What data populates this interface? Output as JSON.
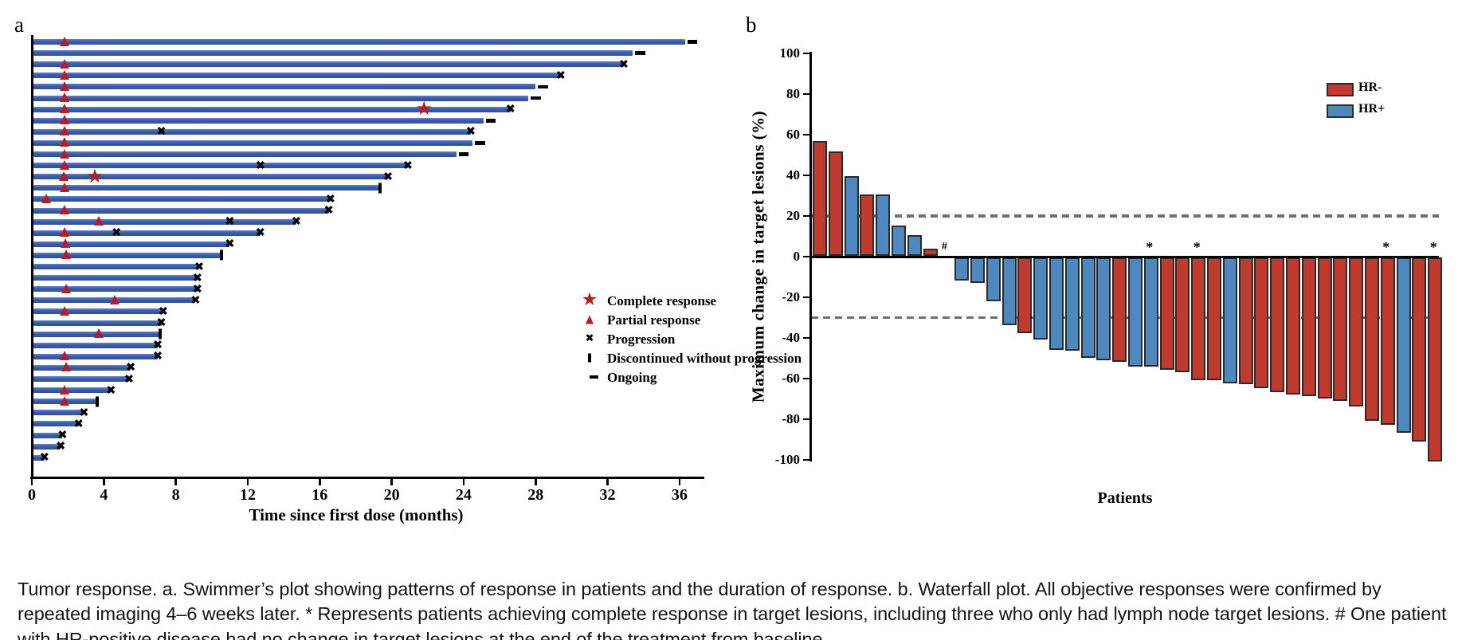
{
  "figure": {
    "panel_a_label": "a",
    "panel_b_label": "b"
  },
  "caption": "Tumor response. a. Swimmer’s plot showing patterns of response in patients and the duration of response. b. Waterfall plot. All objective responses were confirmed by repeated imaging 4–6 weeks later. * Represents patients achieving complete response in target lesions, including three who only had lymph node target lesions. # One patient with HR-positive disease had no change in target lesions at the end of the treatment from baseline.",
  "colors": {
    "swimmer_bar_blue": "#3a5ca8",
    "response_marker_red": "#b81d22",
    "hr_negative_red": "#c03a2e",
    "hr_positive_blue": "#4d89c0",
    "reference_dash_gray": "#6f6f6f",
    "axis_black": "#000000"
  },
  "chart_data": [
    {
      "type": "swimmer",
      "xlabel": "Time since first dose (months)",
      "x_ticks": [
        0,
        4,
        8,
        12,
        16,
        20,
        24,
        28,
        32,
        36
      ],
      "xlim": [
        0,
        37.3
      ],
      "legend": [
        {
          "marker": "star",
          "label": "Complete response"
        },
        {
          "marker": "triangle",
          "label": "Partial response"
        },
        {
          "marker": "x",
          "label": "Progression"
        },
        {
          "marker": "bar",
          "label": "Discontinued without progression"
        },
        {
          "marker": "dash",
          "label": "Ongoing"
        }
      ],
      "patients": [
        {
          "duration": 36.3,
          "end": "ongoing",
          "partial_response_at": 1.8
        },
        {
          "duration": 33.4,
          "end": "ongoing"
        },
        {
          "duration": 32.9,
          "end": "progression",
          "partial_response_at": 1.8
        },
        {
          "duration": 29.4,
          "end": "progression",
          "partial_response_at": 1.8
        },
        {
          "duration": 28.0,
          "end": "ongoing",
          "partial_response_at": 1.8
        },
        {
          "duration": 27.6,
          "end": "ongoing",
          "partial_response_at": 1.8
        },
        {
          "duration": 26.6,
          "end": "progression",
          "partial_response_at": 1.8,
          "complete_response_at": 21.8
        },
        {
          "duration": 25.1,
          "end": "ongoing",
          "partial_response_at": 1.8
        },
        {
          "duration": 24.4,
          "end": "progression",
          "partial_response_at": 1.8,
          "progression_marks": [
            7.2
          ]
        },
        {
          "duration": 24.5,
          "end": "ongoing",
          "partial_response_at": 1.8
        },
        {
          "duration": 23.6,
          "end": "ongoing",
          "partial_response_at": 1.8
        },
        {
          "duration": 20.9,
          "end": "progression",
          "partial_response_at": 1.8,
          "progression_marks": [
            12.7
          ]
        },
        {
          "duration": 19.8,
          "end": "progression",
          "partial_response_at": 1.75,
          "complete_response_at": 3.5
        },
        {
          "duration": 19.3,
          "end": "discontinued",
          "partial_response_at": 1.8
        },
        {
          "duration": 16.6,
          "end": "progression",
          "partial_response_at": 0.8
        },
        {
          "duration": 16.5,
          "end": "progression",
          "partial_response_at": 1.8
        },
        {
          "duration": 14.7,
          "end": "progression",
          "partial_response_at": 3.7,
          "progression_marks": [
            11.0
          ]
        },
        {
          "duration": 12.7,
          "end": "progression",
          "partial_response_at": 1.8,
          "progression_marks": [
            4.7
          ]
        },
        {
          "duration": 11.0,
          "end": "progression",
          "partial_response_at": 1.85
        },
        {
          "duration": 10.5,
          "end": "discontinued",
          "partial_response_at": 1.9
        },
        {
          "duration": 9.3,
          "end": "progression"
        },
        {
          "duration": 9.2,
          "end": "progression"
        },
        {
          "duration": 9.2,
          "end": "progression",
          "partial_response_at": 1.9
        },
        {
          "duration": 9.1,
          "end": "progression",
          "partial_response_at": 4.6
        },
        {
          "duration": 7.3,
          "end": "progression",
          "partial_response_at": 1.8
        },
        {
          "duration": 7.2,
          "end": "progression"
        },
        {
          "duration": 7.1,
          "end": "discontinued",
          "partial_response_at": 3.7
        },
        {
          "duration": 7.0,
          "end": "progression"
        },
        {
          "duration": 7.0,
          "end": "progression",
          "partial_response_at": 1.8
        },
        {
          "duration": 5.5,
          "end": "progression",
          "partial_response_at": 1.9
        },
        {
          "duration": 5.4,
          "end": "progression"
        },
        {
          "duration": 4.4,
          "end": "progression",
          "partial_response_at": 1.8
        },
        {
          "duration": 3.6,
          "end": "discontinued",
          "partial_response_at": 1.8
        },
        {
          "duration": 2.9,
          "end": "progression"
        },
        {
          "duration": 2.6,
          "end": "progression"
        },
        {
          "duration": 1.7,
          "end": "progression"
        },
        {
          "duration": 1.6,
          "end": "progression"
        },
        {
          "duration": 0.7,
          "end": "progression"
        }
      ]
    },
    {
      "type": "waterfall",
      "ylabel": "Maximum change in target lesions (%)",
      "xlabel": "Patients",
      "ylim": [
        -100,
        100
      ],
      "y_ticks": [
        100,
        80,
        60,
        40,
        20,
        0,
        -20,
        -40,
        -60,
        -80,
        -100
      ],
      "reference_lines": [
        20,
        -30
      ],
      "legend": [
        {
          "label": "HR-",
          "color": "#c03a2e"
        },
        {
          "label": "HR+",
          "color": "#4d89c0"
        }
      ],
      "patients": [
        {
          "value": 56,
          "group": "HR-"
        },
        {
          "value": 51,
          "group": "HR-"
        },
        {
          "value": 39,
          "group": "HR+"
        },
        {
          "value": 30,
          "group": "HR-"
        },
        {
          "value": 30,
          "group": "HR+"
        },
        {
          "value": 14.5,
          "group": "HR+"
        },
        {
          "value": 10,
          "group": "HR+"
        },
        {
          "value": 3,
          "group": "HR-"
        },
        {
          "value": 0,
          "group": "HR+",
          "annotation": "#"
        },
        {
          "value": -11,
          "group": "HR+"
        },
        {
          "value": -12,
          "group": "HR+"
        },
        {
          "value": -21,
          "group": "HR+"
        },
        {
          "value": -33,
          "group": "HR+"
        },
        {
          "value": -37,
          "group": "HR-"
        },
        {
          "value": -40,
          "group": "HR+"
        },
        {
          "value": -45,
          "group": "HR+"
        },
        {
          "value": -45.5,
          "group": "HR+"
        },
        {
          "value": -49,
          "group": "HR+"
        },
        {
          "value": -50,
          "group": "HR+"
        },
        {
          "value": -51,
          "group": "HR-"
        },
        {
          "value": -53.5,
          "group": "HR+"
        },
        {
          "value": -53.5,
          "group": "HR+",
          "annotation": "*"
        },
        {
          "value": -55,
          "group": "HR-"
        },
        {
          "value": -56,
          "group": "HR-"
        },
        {
          "value": -60,
          "group": "HR-",
          "annotation": "*"
        },
        {
          "value": -60,
          "group": "HR-"
        },
        {
          "value": -61.5,
          "group": "HR+"
        },
        {
          "value": -62,
          "group": "HR-"
        },
        {
          "value": -64,
          "group": "HR-"
        },
        {
          "value": -66,
          "group": "HR-"
        },
        {
          "value": -67,
          "group": "HR-"
        },
        {
          "value": -68,
          "group": "HR-"
        },
        {
          "value": -69,
          "group": "HR-"
        },
        {
          "value": -70,
          "group": "HR-"
        },
        {
          "value": -73,
          "group": "HR-"
        },
        {
          "value": -80,
          "group": "HR-"
        },
        {
          "value": -82,
          "group": "HR-",
          "annotation": "*"
        },
        {
          "value": -86,
          "group": "HR+"
        },
        {
          "value": -90,
          "group": "HR-"
        },
        {
          "value": -100,
          "group": "HR-",
          "annotation": "*"
        }
      ]
    }
  ]
}
